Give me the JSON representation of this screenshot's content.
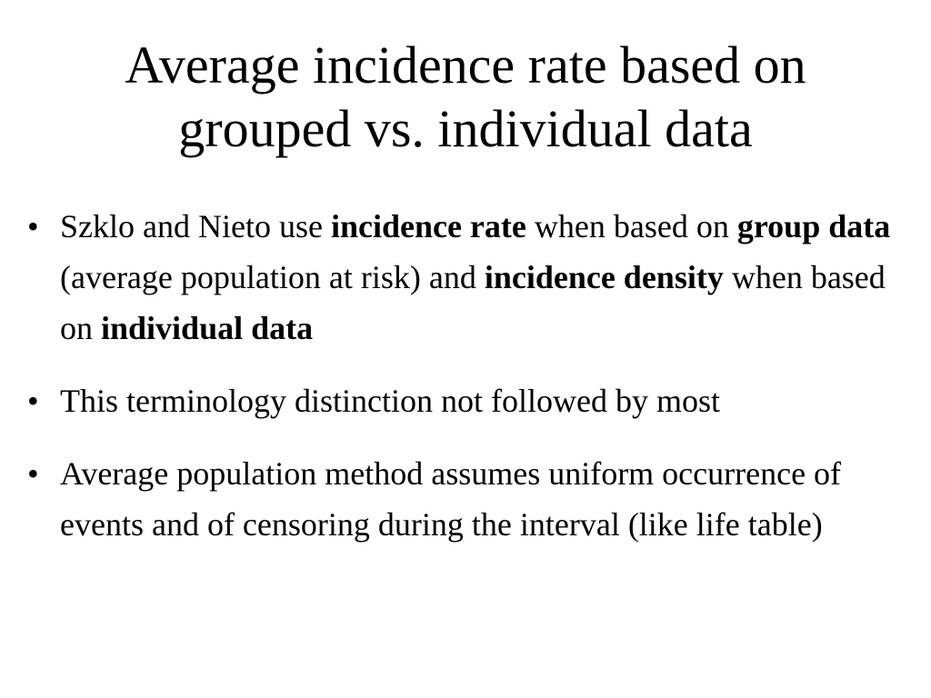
{
  "title": [
    "Average incidence rate based on",
    "grouped vs. individual data"
  ],
  "bullets": [
    {
      "runs": [
        {
          "text": "Szklo and Nieto use ",
          "bold": false
        },
        {
          "text": "incidence rate",
          "bold": true
        },
        {
          "text": " when based on ",
          "bold": false
        },
        {
          "text": "group data",
          "bold": true
        },
        {
          "text": " (average population at risk) and ",
          "bold": false
        },
        {
          "text": "incidence density",
          "bold": true
        },
        {
          "text": " when based on ",
          "bold": false
        },
        {
          "text": "individual data",
          "bold": true
        }
      ]
    },
    {
      "runs": [
        {
          "text": "This terminology distinction not followed by most",
          "bold": false
        }
      ]
    },
    {
      "runs": [
        {
          "text": "Average population method assumes uniform occurrence of events and of censoring during the interval (like life table)",
          "bold": false
        }
      ]
    }
  ]
}
